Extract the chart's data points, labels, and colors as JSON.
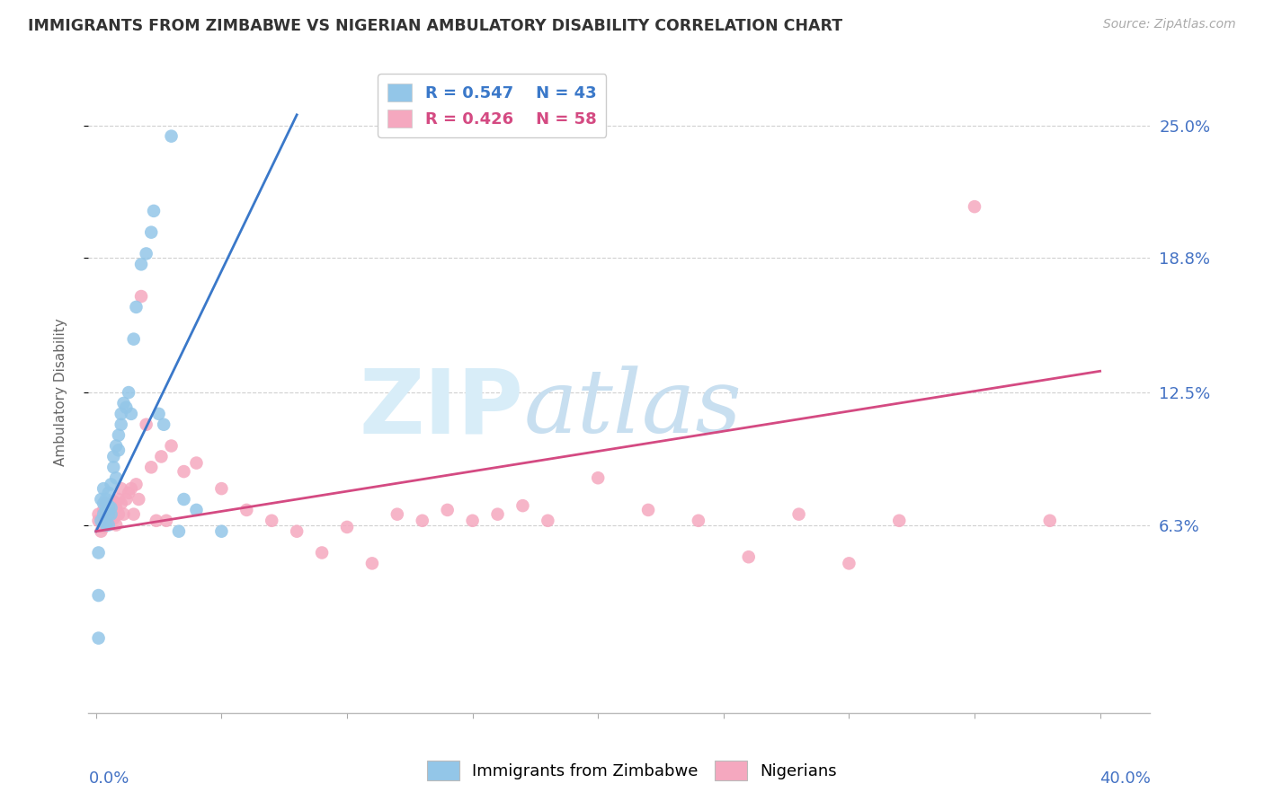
{
  "title": "IMMIGRANTS FROM ZIMBABWE VS NIGERIAN AMBULATORY DISABILITY CORRELATION CHART",
  "source": "Source: ZipAtlas.com",
  "ylabel": "Ambulatory Disability",
  "ytick_values": [
    0.063,
    0.125,
    0.188,
    0.25
  ],
  "ytick_labels": [
    "6.3%",
    "12.5%",
    "18.8%",
    "25.0%"
  ],
  "xlim": [
    -0.003,
    0.42
  ],
  "ylim": [
    -0.025,
    0.275
  ],
  "blue_color": "#93c6e8",
  "pink_color": "#f5a8bf",
  "blue_line_color": "#3a78c9",
  "pink_line_color": "#d44a82",
  "watermark_color": "#d8edf8",
  "blue_x": [
    0.001,
    0.001,
    0.002,
    0.002,
    0.003,
    0.003,
    0.003,
    0.004,
    0.004,
    0.004,
    0.005,
    0.005,
    0.005,
    0.005,
    0.006,
    0.006,
    0.006,
    0.007,
    0.007,
    0.008,
    0.008,
    0.009,
    0.009,
    0.01,
    0.01,
    0.011,
    0.012,
    0.013,
    0.014,
    0.015,
    0.016,
    0.018,
    0.02,
    0.022,
    0.023,
    0.025,
    0.027,
    0.03,
    0.033,
    0.035,
    0.04,
    0.05,
    0.001
  ],
  "blue_y": [
    0.03,
    0.01,
    0.065,
    0.075,
    0.068,
    0.073,
    0.08,
    0.07,
    0.075,
    0.063,
    0.068,
    0.072,
    0.078,
    0.063,
    0.071,
    0.068,
    0.082,
    0.095,
    0.09,
    0.1,
    0.085,
    0.105,
    0.098,
    0.11,
    0.115,
    0.12,
    0.118,
    0.125,
    0.115,
    0.15,
    0.165,
    0.185,
    0.19,
    0.2,
    0.21,
    0.115,
    0.11,
    0.245,
    0.06,
    0.075,
    0.07,
    0.06,
    0.05
  ],
  "pink_x": [
    0.001,
    0.001,
    0.002,
    0.003,
    0.003,
    0.004,
    0.004,
    0.005,
    0.005,
    0.006,
    0.006,
    0.007,
    0.007,
    0.008,
    0.008,
    0.009,
    0.009,
    0.01,
    0.01,
    0.011,
    0.012,
    0.013,
    0.014,
    0.015,
    0.016,
    0.017,
    0.018,
    0.02,
    0.022,
    0.024,
    0.026,
    0.028,
    0.03,
    0.035,
    0.04,
    0.05,
    0.06,
    0.07,
    0.08,
    0.09,
    0.1,
    0.11,
    0.12,
    0.13,
    0.14,
    0.15,
    0.16,
    0.17,
    0.18,
    0.2,
    0.22,
    0.24,
    0.26,
    0.28,
    0.3,
    0.32,
    0.35,
    0.38
  ],
  "pink_y": [
    0.065,
    0.068,
    0.06,
    0.062,
    0.07,
    0.068,
    0.073,
    0.065,
    0.07,
    0.068,
    0.072,
    0.066,
    0.074,
    0.071,
    0.063,
    0.068,
    0.075,
    0.073,
    0.08,
    0.068,
    0.075,
    0.078,
    0.08,
    0.068,
    0.082,
    0.075,
    0.17,
    0.11,
    0.09,
    0.065,
    0.095,
    0.065,
    0.1,
    0.088,
    0.092,
    0.08,
    0.07,
    0.065,
    0.06,
    0.05,
    0.062,
    0.045,
    0.068,
    0.065,
    0.07,
    0.065,
    0.068,
    0.072,
    0.065,
    0.085,
    0.07,
    0.065,
    0.048,
    0.068,
    0.045,
    0.065,
    0.212,
    0.065
  ],
  "blue_line_x0": 0.0,
  "blue_line_x1": 0.08,
  "blue_line_y0": 0.06,
  "blue_line_y1": 0.255,
  "pink_line_x0": 0.0,
  "pink_line_x1": 0.4,
  "pink_line_y0": 0.06,
  "pink_line_y1": 0.135
}
